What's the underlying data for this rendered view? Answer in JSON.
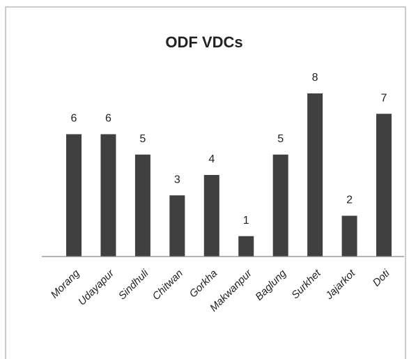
{
  "chart_data": {
    "type": "bar",
    "title": "ODF VDCs",
    "categories": [
      "Morang",
      "Udayapur",
      "Sindhuli",
      "Chitwan",
      "Gorkha",
      "Makwanpur",
      "Baglung",
      "Surkhet",
      "Jajarkot",
      "Doti"
    ],
    "values": [
      6,
      6,
      5,
      3,
      4,
      1,
      5,
      8,
      2,
      7
    ],
    "color": "#404040",
    "ylim": [
      0,
      8
    ]
  }
}
